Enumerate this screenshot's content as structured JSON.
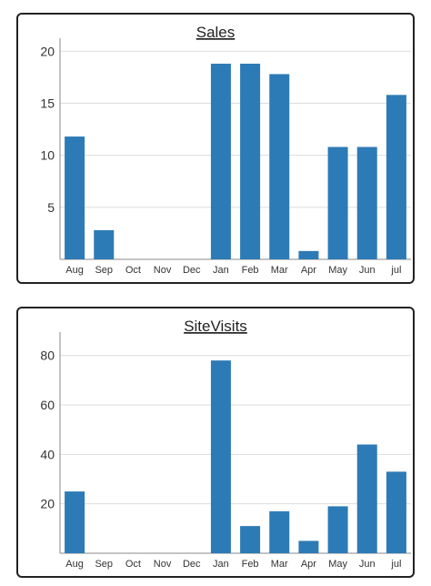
{
  "colors": {
    "bar": "#2d7bb6",
    "grid": "#dddddd",
    "axis": "#888888",
    "border": "#222222"
  },
  "chart_data": [
    {
      "type": "bar",
      "title": "Sales",
      "xlabel": "",
      "ylabel": "",
      "categories": [
        "Aug",
        "Sep",
        "Oct",
        "Nov",
        "Dec",
        "Jan",
        "Feb",
        "Mar",
        "Apr",
        "May",
        "Jun",
        "jul"
      ],
      "values": [
        11.8,
        2.8,
        0,
        0,
        0,
        18.8,
        18.8,
        17.8,
        0.8,
        10.8,
        10.8,
        15.8
      ],
      "yticks": [
        5,
        10,
        15,
        20
      ],
      "ylim": [
        0,
        20.9
      ],
      "grid": true,
      "legend": "none"
    },
    {
      "type": "bar",
      "title": "SiteVisits",
      "xlabel": "",
      "ylabel": "",
      "categories": [
        "Aug",
        "Sep",
        "Oct",
        "Nov",
        "Dec",
        "Jan",
        "Feb",
        "Mar",
        "Apr",
        "May",
        "Jun",
        "jul"
      ],
      "values": [
        25,
        0,
        0,
        0,
        0,
        78,
        11,
        17,
        5,
        19,
        44,
        33
      ],
      "yticks": [
        20,
        40,
        60,
        80
      ],
      "ylim": [
        0,
        88
      ],
      "grid": true,
      "legend": "none"
    }
  ]
}
